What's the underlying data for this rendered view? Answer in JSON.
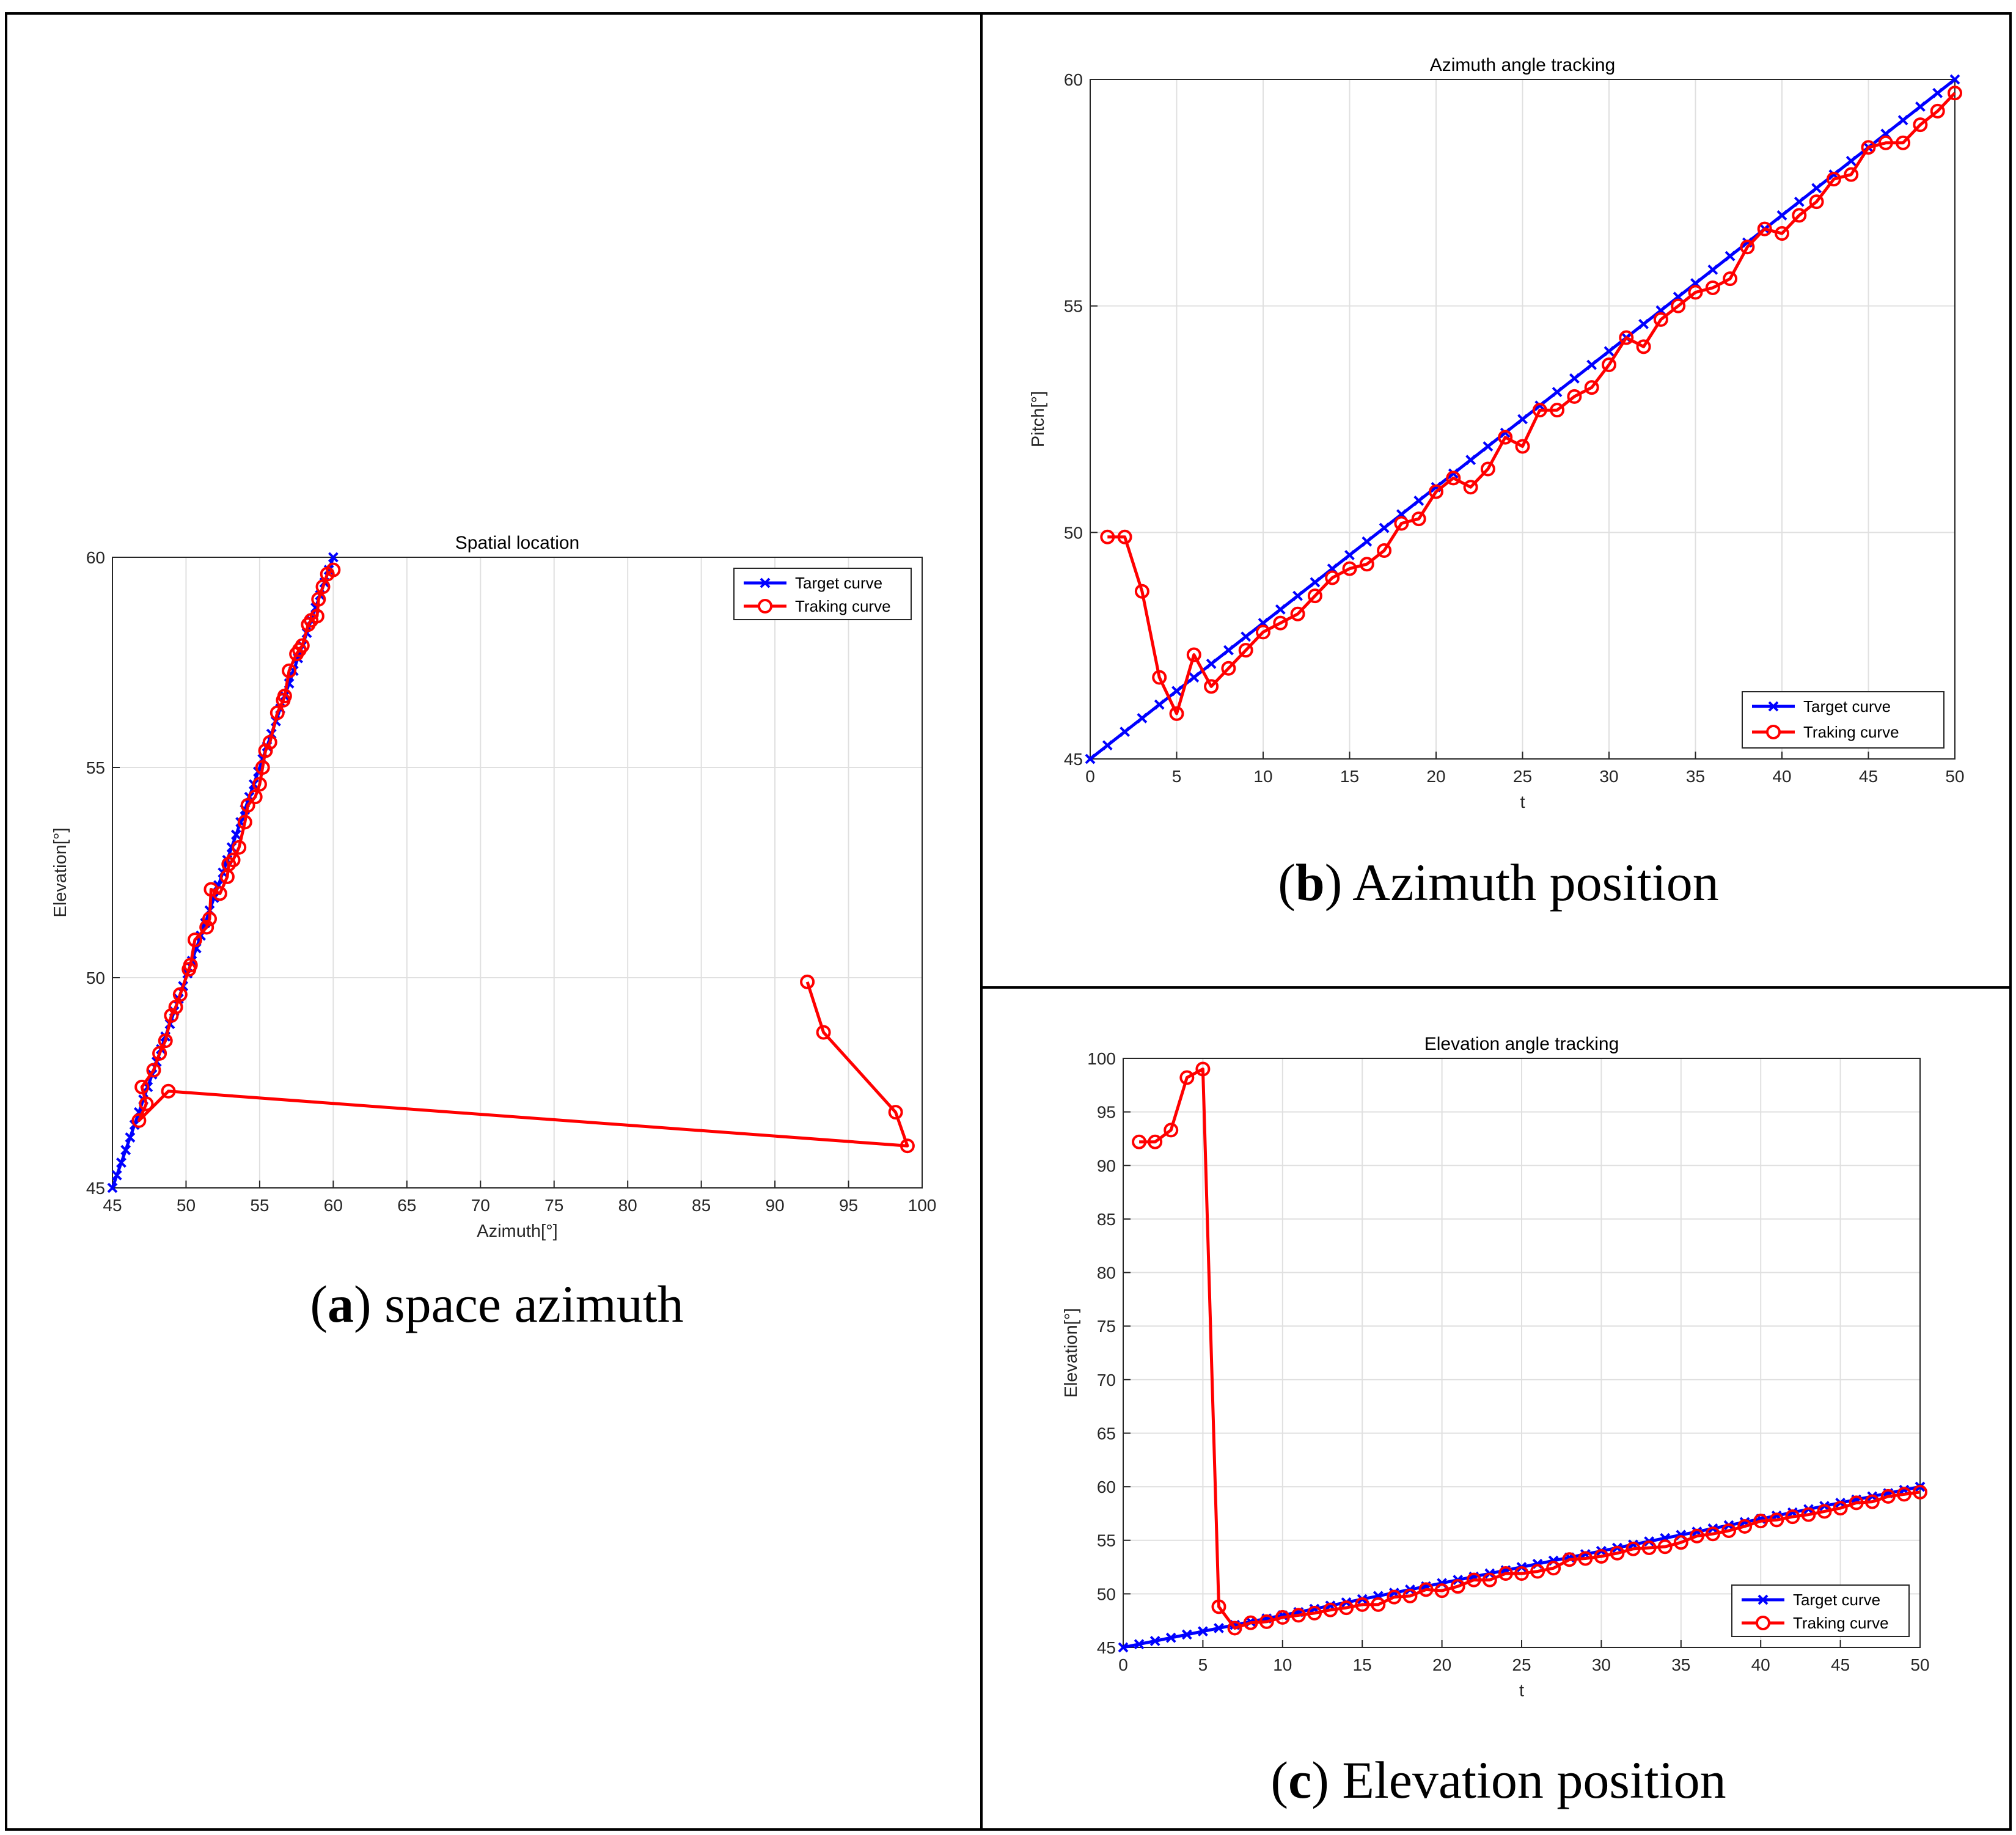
{
  "colors": {
    "target": "#0000ff",
    "tracking": "#ff0000",
    "grid": "#e0e0e0",
    "axis": "#262626"
  },
  "captions": {
    "a": {
      "letter": "a",
      "text": "space azimuth"
    },
    "b": {
      "letter": "b",
      "text": "Azimuth position"
    },
    "c": {
      "letter": "c",
      "text": "Elevation position"
    }
  },
  "chart_data": [
    {
      "id": "a",
      "type": "line",
      "title": "Spatial location",
      "xlabel": "Azimuth[°]",
      "ylabel": "Elevation[°]",
      "xlim": [
        45,
        100
      ],
      "ylim": [
        45,
        60
      ],
      "xticks": [
        45,
        50,
        55,
        60,
        65,
        70,
        75,
        80,
        85,
        90,
        95,
        100
      ],
      "yticks": [
        45,
        50,
        55,
        60
      ],
      "grid": true,
      "legend": {
        "position": "top-right",
        "entries": [
          "Target curve",
          "Traking curve"
        ]
      },
      "series": [
        {
          "name": "Target curve",
          "marker": "x",
          "x": [
            45,
            45.3,
            45.6,
            45.9,
            46.2,
            46.5,
            46.8,
            47.1,
            47.4,
            47.7,
            48,
            48.3,
            48.6,
            48.9,
            49.2,
            49.5,
            49.8,
            50.1,
            50.4,
            50.7,
            51,
            51.3,
            51.6,
            51.9,
            52.2,
            52.5,
            52.8,
            53.1,
            53.4,
            53.7,
            54,
            54.3,
            54.6,
            54.9,
            55.2,
            55.5,
            55.8,
            56.1,
            56.4,
            56.7,
            57,
            57.3,
            57.6,
            57.9,
            58.2,
            58.5,
            58.8,
            59.1,
            59.4,
            59.7,
            60
          ],
          "y": [
            45,
            45.3,
            45.6,
            45.9,
            46.2,
            46.5,
            46.8,
            47.1,
            47.4,
            47.7,
            48,
            48.3,
            48.6,
            48.9,
            49.2,
            49.5,
            49.8,
            50.1,
            50.4,
            50.7,
            51,
            51.3,
            51.6,
            51.9,
            52.2,
            52.5,
            52.8,
            53.1,
            53.4,
            53.7,
            54,
            54.3,
            54.6,
            54.9,
            55.2,
            55.5,
            55.8,
            56.1,
            56.4,
            56.7,
            57,
            57.3,
            57.6,
            57.9,
            58.2,
            58.5,
            58.8,
            59.1,
            59.4,
            59.7,
            60
          ]
        },
        {
          "name": "Traking curve",
          "marker": "o",
          "x": [
            92.2,
            93.3,
            98.2,
            99.0,
            48.8,
            46.8,
            47.3,
            47.0,
            47.8,
            48.2,
            48.6,
            49.0,
            49.3,
            49.6,
            50.2,
            50.3,
            50.6,
            51.4,
            51.6,
            51.7,
            52.3,
            52.8,
            52.9,
            53.2,
            53.6,
            54.0,
            54.2,
            54.7,
            55.0,
            55.2,
            55.4,
            55.7,
            56.2,
            56.6,
            56.7,
            57.0,
            57.5,
            57.7,
            57.9,
            58.3,
            58.5,
            58.9,
            59.0,
            59.3,
            59.6,
            60.0
          ],
          "y": [
            49.9,
            48.7,
            46.8,
            46.0,
            47.3,
            46.6,
            47.0,
            47.4,
            47.8,
            48.2,
            48.5,
            49.1,
            49.3,
            49.6,
            50.2,
            50.3,
            50.9,
            51.2,
            51.4,
            52.1,
            52.0,
            52.4,
            52.7,
            52.8,
            53.1,
            53.7,
            54.1,
            54.3,
            54.6,
            55.0,
            55.4,
            55.6,
            56.3,
            56.6,
            56.7,
            57.3,
            57.7,
            57.8,
            57.9,
            58.4,
            58.5,
            58.6,
            59.0,
            59.3,
            59.6,
            59.7
          ]
        }
      ]
    },
    {
      "id": "b",
      "type": "line",
      "title": "Azimuth angle tracking",
      "xlabel": "t",
      "ylabel": "Pitch[°]",
      "xlim": [
        0,
        50
      ],
      "ylim": [
        45,
        60
      ],
      "xticks": [
        0,
        5,
        10,
        15,
        20,
        25,
        30,
        35,
        40,
        45,
        50
      ],
      "yticks": [
        45,
        50,
        55,
        60
      ],
      "grid": true,
      "legend": {
        "position": "bottom-right",
        "entries": [
          "Target curve",
          "Traking curve"
        ]
      },
      "series": [
        {
          "name": "Target curve",
          "marker": "x",
          "x": [
            0,
            1,
            2,
            3,
            4,
            5,
            6,
            7,
            8,
            9,
            10,
            11,
            12,
            13,
            14,
            15,
            16,
            17,
            18,
            19,
            20,
            21,
            22,
            23,
            24,
            25,
            26,
            27,
            28,
            29,
            30,
            31,
            32,
            33,
            34,
            35,
            36,
            37,
            38,
            39,
            40,
            41,
            42,
            43,
            44,
            45,
            46,
            47,
            48,
            49,
            50
          ],
          "y": [
            45,
            45.3,
            45.6,
            45.9,
            46.2,
            46.5,
            46.8,
            47.1,
            47.4,
            47.7,
            48,
            48.3,
            48.6,
            48.9,
            49.2,
            49.5,
            49.8,
            50.1,
            50.4,
            50.7,
            51,
            51.3,
            51.6,
            51.9,
            52.2,
            52.5,
            52.8,
            53.1,
            53.4,
            53.7,
            54,
            54.3,
            54.6,
            54.9,
            55.2,
            55.5,
            55.8,
            56.1,
            56.4,
            56.7,
            57,
            57.3,
            57.6,
            57.9,
            58.2,
            58.5,
            58.8,
            59.1,
            59.4,
            59.7,
            60
          ]
        },
        {
          "name": "Traking curve",
          "marker": "o",
          "x": [
            1,
            2,
            3,
            4,
            5,
            6,
            7,
            8,
            9,
            10,
            11,
            12,
            13,
            14,
            15,
            16,
            17,
            18,
            19,
            20,
            21,
            22,
            23,
            24,
            25,
            26,
            27,
            28,
            29,
            30,
            31,
            32,
            33,
            34,
            35,
            36,
            37,
            38,
            39,
            40,
            41,
            42,
            43,
            44,
            45,
            46,
            47,
            48,
            49,
            50
          ],
          "y": [
            49.9,
            49.9,
            48.7,
            46.8,
            46.0,
            47.3,
            46.6,
            47.0,
            47.4,
            47.8,
            48.0,
            48.2,
            48.6,
            49.0,
            49.2,
            49.3,
            49.6,
            50.2,
            50.3,
            50.9,
            51.2,
            51.0,
            51.4,
            52.1,
            51.9,
            52.7,
            52.7,
            53.0,
            53.2,
            53.7,
            54.3,
            54.1,
            54.7,
            55.0,
            55.3,
            55.4,
            55.6,
            56.3,
            56.7,
            56.6,
            57.0,
            57.3,
            57.8,
            57.9,
            58.5,
            58.6,
            58.6,
            59.0,
            59.3,
            59.7
          ]
        }
      ]
    },
    {
      "id": "c",
      "type": "line",
      "title": "Elevation angle tracking",
      "xlabel": "t",
      "ylabel": "Elevation[°]",
      "xlim": [
        0,
        50
      ],
      "ylim": [
        45,
        100
      ],
      "xticks": [
        0,
        5,
        10,
        15,
        20,
        25,
        30,
        35,
        40,
        45,
        50
      ],
      "yticks": [
        45,
        50,
        55,
        60,
        65,
        70,
        75,
        80,
        85,
        90,
        95,
        100
      ],
      "grid": true,
      "legend": {
        "position": "bottom-right",
        "entries": [
          "Target curve",
          "Traking curve"
        ]
      },
      "series": [
        {
          "name": "Target curve",
          "marker": "x",
          "x": [
            0,
            1,
            2,
            3,
            4,
            5,
            6,
            7,
            8,
            9,
            10,
            11,
            12,
            13,
            14,
            15,
            16,
            17,
            18,
            19,
            20,
            21,
            22,
            23,
            24,
            25,
            26,
            27,
            28,
            29,
            30,
            31,
            32,
            33,
            34,
            35,
            36,
            37,
            38,
            39,
            40,
            41,
            42,
            43,
            44,
            45,
            46,
            47,
            48,
            49,
            50
          ],
          "y": [
            45,
            45.3,
            45.6,
            45.9,
            46.2,
            46.5,
            46.8,
            47.1,
            47.4,
            47.7,
            48,
            48.3,
            48.6,
            48.9,
            49.2,
            49.5,
            49.8,
            50.1,
            50.4,
            50.7,
            51,
            51.3,
            51.6,
            51.9,
            52.2,
            52.5,
            52.8,
            53.1,
            53.4,
            53.7,
            54,
            54.3,
            54.6,
            54.9,
            55.2,
            55.5,
            55.8,
            56.1,
            56.4,
            56.7,
            57,
            57.3,
            57.6,
            57.9,
            58.2,
            58.5,
            58.8,
            59.1,
            59.4,
            59.7,
            60
          ]
        },
        {
          "name": "Traking curve",
          "marker": "o",
          "x": [
            1,
            2,
            3,
            4,
            5,
            6,
            7,
            8,
            9,
            10,
            11,
            12,
            13,
            14,
            15,
            16,
            17,
            18,
            19,
            20,
            21,
            22,
            23,
            24,
            25,
            26,
            27,
            28,
            29,
            30,
            31,
            32,
            33,
            34,
            35,
            36,
            37,
            38,
            39,
            40,
            41,
            42,
            43,
            44,
            45,
            46,
            47,
            48,
            49,
            50
          ],
          "y": [
            92.2,
            92.2,
            93.3,
            98.2,
            99.0,
            48.8,
            46.8,
            47.3,
            47.4,
            47.8,
            48.0,
            48.2,
            48.5,
            48.7,
            49.0,
            49.0,
            49.7,
            49.8,
            50.4,
            50.3,
            50.7,
            51.3,
            51.3,
            51.9,
            51.9,
            52.1,
            52.4,
            53.2,
            53.3,
            53.5,
            53.8,
            54.2,
            54.3,
            54.4,
            54.8,
            55.4,
            55.6,
            55.9,
            56.3,
            56.8,
            56.9,
            57.2,
            57.4,
            57.7,
            58.0,
            58.5,
            58.6,
            59.1,
            59.3,
            59.5
          ]
        }
      ]
    }
  ]
}
